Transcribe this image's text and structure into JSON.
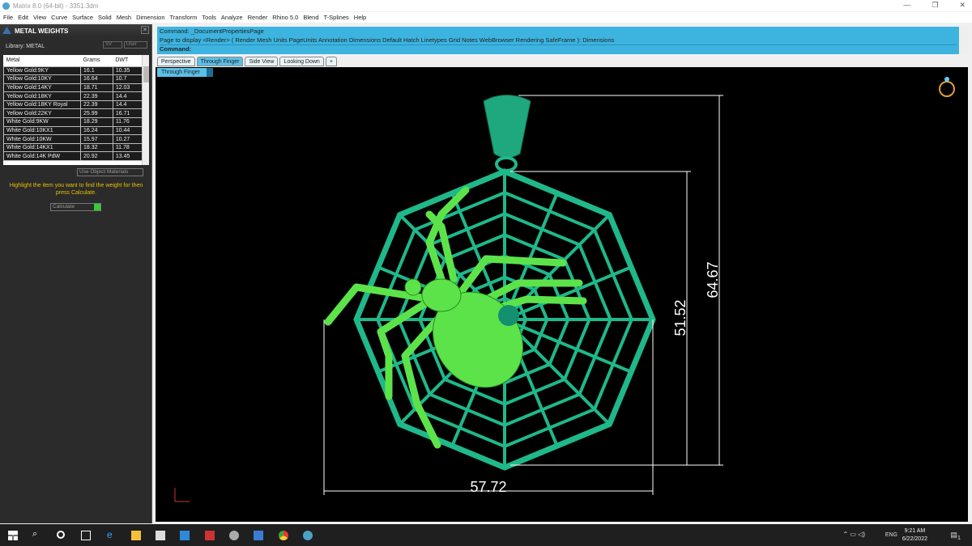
{
  "window": {
    "title": "Matrix 8.0 (64-bit) - 3351.3dm"
  },
  "menu": [
    "File",
    "Edit",
    "View",
    "Curve",
    "Surface",
    "Solid",
    "Mesh",
    "Dimension",
    "Transform",
    "Tools",
    "Analyze",
    "Render",
    "Rhino 5.0",
    "Blend",
    "T-Splines",
    "Help"
  ],
  "panel": {
    "title": "METAL WEIGHTS",
    "library": "Library: METAL",
    "sel1": "SV",
    "sel2": "User",
    "columns": [
      "Metal",
      "Grams",
      "DWT"
    ],
    "rows": [
      [
        "Yellow Gold:9KY",
        "16.1",
        "10.35"
      ],
      [
        "Yellow Gold:10KY",
        "16.64",
        "10.7"
      ],
      [
        "Yellow Gold:14KY",
        "18.71",
        "12.03"
      ],
      [
        "Yellow Gold:18KY",
        "22.39",
        "14.4"
      ],
      [
        "Yellow Gold:18KY Royal",
        "22.39",
        "14.4"
      ],
      [
        "Yellow Gold:22KY",
        "25.99",
        "16.71"
      ],
      [
        "White Gold:9KW",
        "18.29",
        "11.76"
      ],
      [
        "White Gold:10KX1",
        "16.24",
        "10.44"
      ],
      [
        "White Gold:10KW",
        "15.97",
        "10.27"
      ],
      [
        "White Gold:14KX1",
        "18.32",
        "11.78"
      ],
      [
        "White Gold:14K PdW",
        "20.92",
        "13.45"
      ]
    ],
    "material_select": "Use Object Materials",
    "hint": "Highlight the item you want to find the weight for then press Calculate.",
    "calculate": "Calculate"
  },
  "command": {
    "line1": "Command: _DocumentPropertiesPage",
    "line2": "Page to display <Render> ( Render  Mesh  Units  PageUnits  Annotation  Dimensions  Default  Hatch  Linetypes  Grid  Notes  WebBrowser  Rendering  SafeFrame ): Dimensions",
    "prompt": "Command:"
  },
  "tabs": [
    {
      "label": "Perspective"
    },
    {
      "label": "Through Finger",
      "active": true
    },
    {
      "label": "Side View"
    },
    {
      "label": "Looking Down"
    },
    {
      "label": "+"
    }
  ],
  "viewport": {
    "label": "Through Finger",
    "dimensions": {
      "width": "57.72",
      "height_web": "51.52",
      "height_total": "64.67"
    },
    "colors": {
      "web": "#1fb88a",
      "spider": "#5de34a",
      "dim": "#ffffff"
    }
  },
  "taskbar": {
    "time": "9:21 AM",
    "date": "6/22/2022",
    "lang": "ENG",
    "notifications": "1"
  }
}
